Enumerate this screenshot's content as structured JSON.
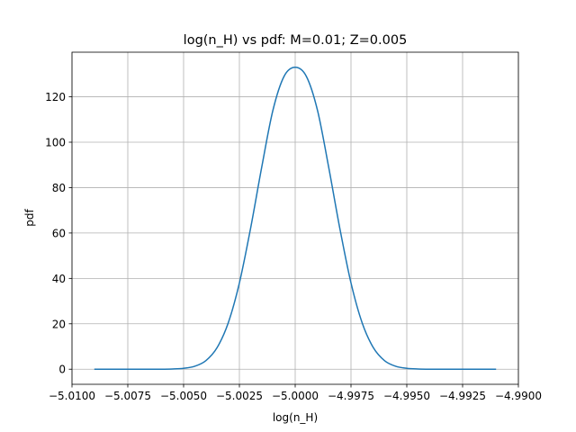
{
  "chart_data": {
    "type": "line",
    "title": "log(n_H) vs pdf: M=0.01; Z=0.005",
    "xlabel": "log(n_H)",
    "ylabel": "pdf",
    "xlim": [
      -5.01,
      -4.99
    ],
    "ylim": [
      -6.65,
      139.65
    ],
    "grid": true,
    "line_color": "#1f77b4",
    "xticks": [
      -5.01,
      -5.0075,
      -5.005,
      -5.0025,
      -5.0,
      -4.9975,
      -4.995,
      -4.9925,
      -4.99
    ],
    "xtick_labels": [
      "−5.0100",
      "−5.0075",
      "−5.0050",
      "−5.0025",
      "−5.0000",
      "−4.9975",
      "−4.9950",
      "−4.9925",
      "−4.9900"
    ],
    "yticks": [
      0,
      20,
      40,
      60,
      80,
      100,
      120
    ],
    "ytick_labels": [
      "0",
      "20",
      "40",
      "60",
      "80",
      "100",
      "120"
    ],
    "series": [
      {
        "x": [
          -5.009,
          -5.008,
          -5.007,
          -5.006,
          -5.0055,
          -5.005,
          -5.0045,
          -5.004,
          -5.0035,
          -5.003,
          -5.0025,
          -5.002,
          -5.0015,
          -5.001,
          -5.0005,
          -5.0,
          -4.9995,
          -4.999,
          -4.9985,
          -4.998,
          -4.9975,
          -4.997,
          -4.9965,
          -4.996,
          -4.9955,
          -4.995,
          -4.9945,
          -4.994,
          -4.993,
          -4.992,
          -4.991
        ],
        "y": [
          0,
          0,
          0,
          0,
          0.1,
          0.4,
          1.3,
          3.8,
          9.5,
          20.4,
          38,
          62,
          89,
          114,
          129,
          133,
          129,
          114,
          89,
          62,
          38,
          20.4,
          9.5,
          3.8,
          1.3,
          0.4,
          0.1,
          0,
          0,
          0,
          0
        ]
      }
    ]
  }
}
